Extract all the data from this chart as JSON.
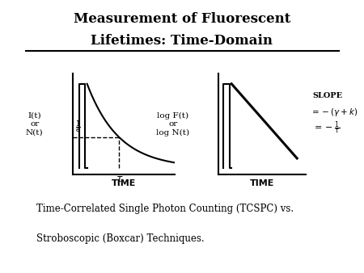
{
  "title_line1": "Measurement of Fluorescent",
  "title_line2": "Lifetimes: Time-Domain",
  "bg_color": "#ffffff",
  "text_color": "#000000",
  "subtitle1": "Time-Correlated Single Photon Counting (TCSPC) vs.",
  "subtitle2": "Stroboscopic (Boxcar) Techniques.",
  "left_ylabel": "I(t)\nor\nN(t)",
  "left_xlabel": "TIME",
  "right_ylabel": "log F(t)\nor\nlog N(t)",
  "right_xlabel": "TIME"
}
